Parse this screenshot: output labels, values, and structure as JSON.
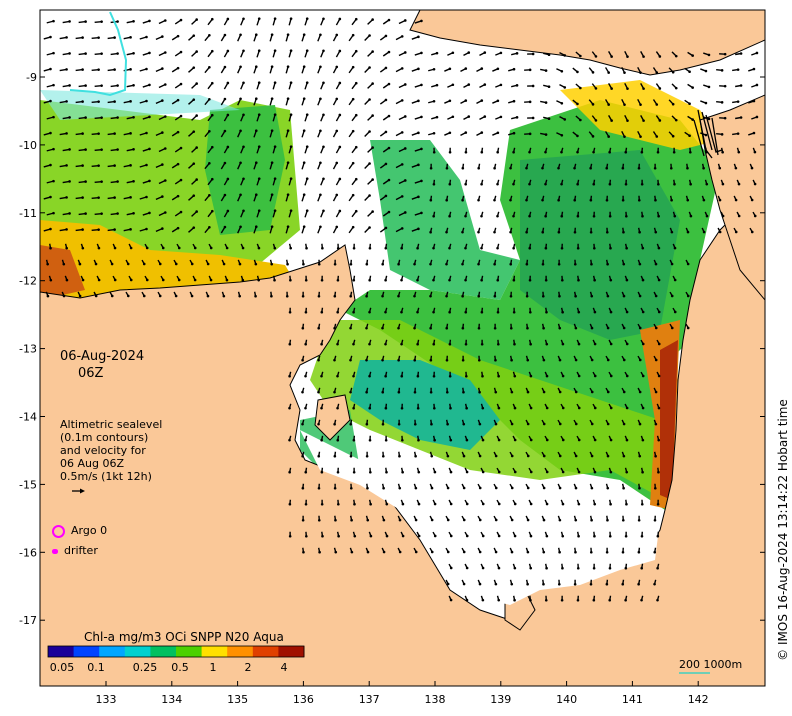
{
  "map": {
    "date": "06-Aug-2024",
    "hour": "06Z",
    "velocity_legend": [
      "Altimetric sealevel",
      "(0.1m contours)",
      "and velocity for",
      "06 Aug 06Z",
      "0.5m/s (1kt 12h)"
    ],
    "argo_label": "Argo 0",
    "drifter_label": "drifter",
    "colorbar": {
      "title": "Chl-a mg/m3 OCi SNPP N20 Aqua",
      "tick_labels": [
        "0.05",
        "0.1",
        "0.25",
        "0.5",
        "1",
        "2",
        "4"
      ],
      "colors": [
        "#1a0099",
        "#0044ff",
        "#00a6ff",
        "#00d0d0",
        "#00c060",
        "#4cd000",
        "#ffe000",
        "#ff9000",
        "#e04000",
        "#a01000"
      ]
    },
    "scale_bar": {
      "label": "200  1000m",
      "color": "#40d0c0"
    },
    "lon_labels": [
      "133",
      "134",
      "135",
      "136",
      "137",
      "138",
      "139",
      "140",
      "141",
      "142"
    ],
    "lat_labels": [
      "-9",
      "-10",
      "-11",
      "-12",
      "-13",
      "-14",
      "-15",
      "-16",
      "-17"
    ],
    "credit": "© IMOS 16-Aug-2024 13:14:22 Hobart time",
    "land_color": "#fac898",
    "coast_color": "#000000"
  }
}
